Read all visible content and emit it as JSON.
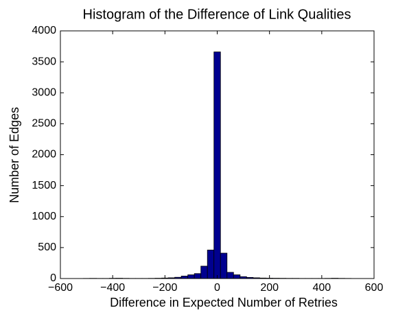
{
  "chart_data": {
    "type": "histogram",
    "title": "Histogram of the Difference of Link Qualities",
    "x_label": "Difference in Expected Number of Retries",
    "y_label": "Number of Edges",
    "bins": [
      -512.5,
      -487.5,
      -462.5,
      -437.5,
      -412.5,
      -387.5,
      -362.5,
      -337.5,
      -312.5,
      -287.5,
      -262.5,
      -237.5,
      -212.5,
      -187.5,
      -162.5,
      -137.5,
      -112.5,
      -87.5,
      -62.5,
      -37.5,
      -12.5,
      12.5,
      37.5,
      62.5,
      87.5,
      112.5,
      137.5,
      162.5,
      187.5,
      212.5,
      237.5,
      262.5,
      287.5,
      312.5,
      337.5,
      362.5,
      387.5,
      412.5,
      437.5,
      462.5,
      487.5,
      512.5
    ],
    "counts": [
      2,
      3,
      2,
      2,
      4,
      5,
      3,
      2,
      2,
      2,
      3,
      5,
      8,
      12,
      20,
      40,
      60,
      80,
      200,
      460,
      3660,
      410,
      100,
      60,
      30,
      18,
      12,
      8,
      6,
      5,
      4,
      3,
      3,
      2,
      2,
      2,
      2,
      3,
      5,
      3,
      2
    ],
    "color": "#00008f",
    "xlim": [
      -600,
      600
    ],
    "xticks": [
      {
        "value": -600,
        "label": "−600"
      },
      {
        "value": -400,
        "label": "−400"
      },
      {
        "value": -200,
        "label": "−200"
      },
      0,
      200,
      400,
      600
    ],
    "ylim": [
      0,
      4000
    ],
    "yticks": [
      0,
      500,
      1000,
      1500,
      2000,
      2500,
      3000,
      3500,
      4000
    ]
  }
}
